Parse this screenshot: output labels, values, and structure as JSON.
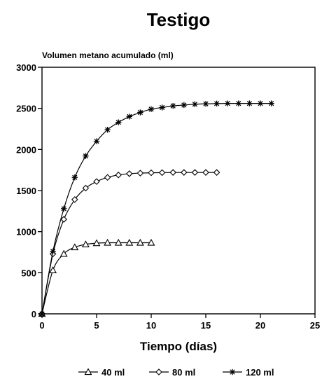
{
  "chart_data": {
    "type": "line",
    "title": "Testigo",
    "ylabel": "Volumen metano acumulado (ml)",
    "xlabel": "Tiempo (días)",
    "xlim": [
      0,
      25
    ],
    "ylim": [
      0,
      3000
    ],
    "xticks": [
      0,
      5,
      10,
      15,
      20,
      25
    ],
    "yticks": [
      0,
      500,
      1000,
      1500,
      2000,
      2500,
      3000
    ],
    "grid": false,
    "legend_position": "bottom",
    "series": [
      {
        "name": "40 ml",
        "marker": "triangle",
        "x": [
          0,
          1,
          2,
          3,
          4,
          5,
          6,
          7,
          8,
          9,
          10
        ],
        "y": [
          0,
          530,
          730,
          810,
          845,
          860,
          865,
          865,
          865,
          865,
          865
        ]
      },
      {
        "name": "80 ml",
        "marker": "diamond",
        "x": [
          0,
          1,
          2,
          3,
          4,
          5,
          6,
          7,
          8,
          9,
          10,
          11,
          12,
          13,
          14,
          15,
          16
        ],
        "y": [
          0,
          730,
          1150,
          1390,
          1530,
          1610,
          1660,
          1690,
          1705,
          1712,
          1716,
          1718,
          1720,
          1720,
          1720,
          1720,
          1720
        ]
      },
      {
        "name": "120 ml",
        "marker": "asterisk",
        "x": [
          0,
          1,
          2,
          3,
          4,
          5,
          6,
          7,
          8,
          9,
          10,
          11,
          12,
          13,
          14,
          15,
          16,
          17,
          18,
          19,
          20,
          21
        ],
        "y": [
          0,
          760,
          1280,
          1660,
          1920,
          2100,
          2240,
          2330,
          2400,
          2450,
          2490,
          2510,
          2530,
          2540,
          2550,
          2555,
          2558,
          2560,
          2560,
          2560,
          2560,
          2560
        ]
      }
    ]
  }
}
